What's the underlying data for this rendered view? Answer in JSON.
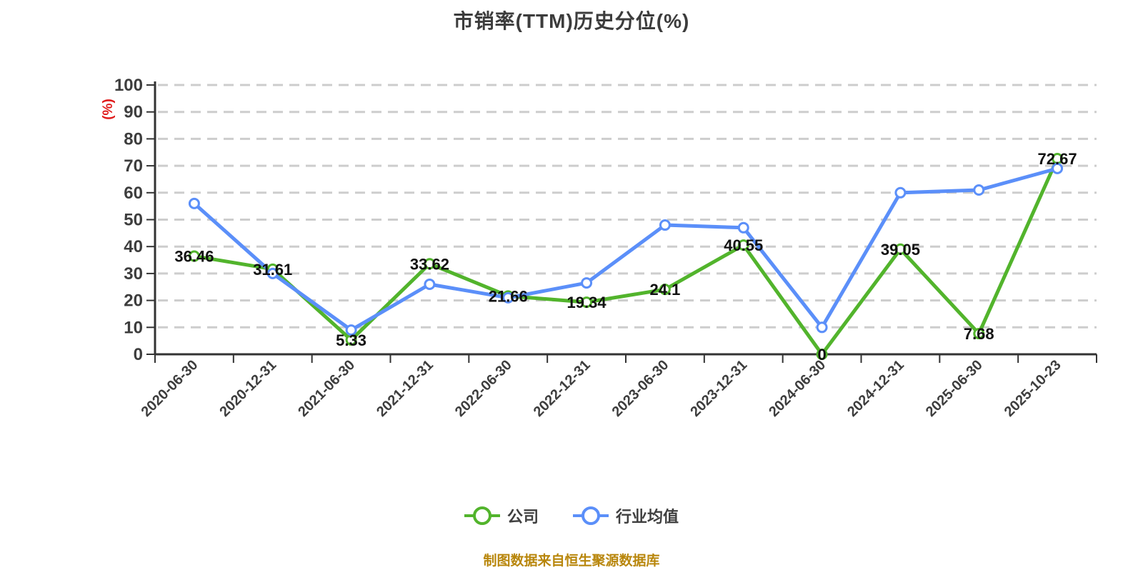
{
  "title": "市销率(TTM)历史分位(%)",
  "footer": "制图数据来自恒生聚源数据库",
  "colors": {
    "background": "#ffffff",
    "title_text": "#3c3c3c",
    "axis": "#333333",
    "grid": "#cdcdcd",
    "tick_label": "#3d3d3d",
    "value_label": "#111111",
    "unit_label": "#e01a1a",
    "legend_text": "#3f3f3f",
    "footer_text": "#b8860b"
  },
  "chart_data": {
    "type": "line",
    "title": "市销率(TTM)历史分位(%)",
    "xlabel": "",
    "ylabel": "(%)",
    "ylim": [
      0,
      100
    ],
    "y_tick_step": 10,
    "grid": true,
    "grid_style": "dashed",
    "legend_position": "bottom",
    "categories": [
      "2020-06-30",
      "2020-12-31",
      "2021-06-30",
      "2021-12-31",
      "2022-06-30",
      "2022-12-31",
      "2023-06-30",
      "2023-12-31",
      "2024-06-30",
      "2024-12-31",
      "2025-06-30",
      "2025-10-23"
    ],
    "series": [
      {
        "key": "company",
        "name": "公司",
        "color": "#52b42c",
        "show_labels": true,
        "values": [
          36.46,
          31.61,
          5.33,
          33.62,
          21.66,
          19.34,
          24.1,
          40.55,
          0,
          39.05,
          7.68,
          72.67
        ]
      },
      {
        "key": "industry-average",
        "name": "行业均值",
        "color": "#5b8ff9",
        "show_labels": false,
        "values": [
          56,
          30,
          9,
          26,
          21,
          26.5,
          48,
          47,
          10,
          60,
          61,
          69
        ]
      }
    ]
  }
}
